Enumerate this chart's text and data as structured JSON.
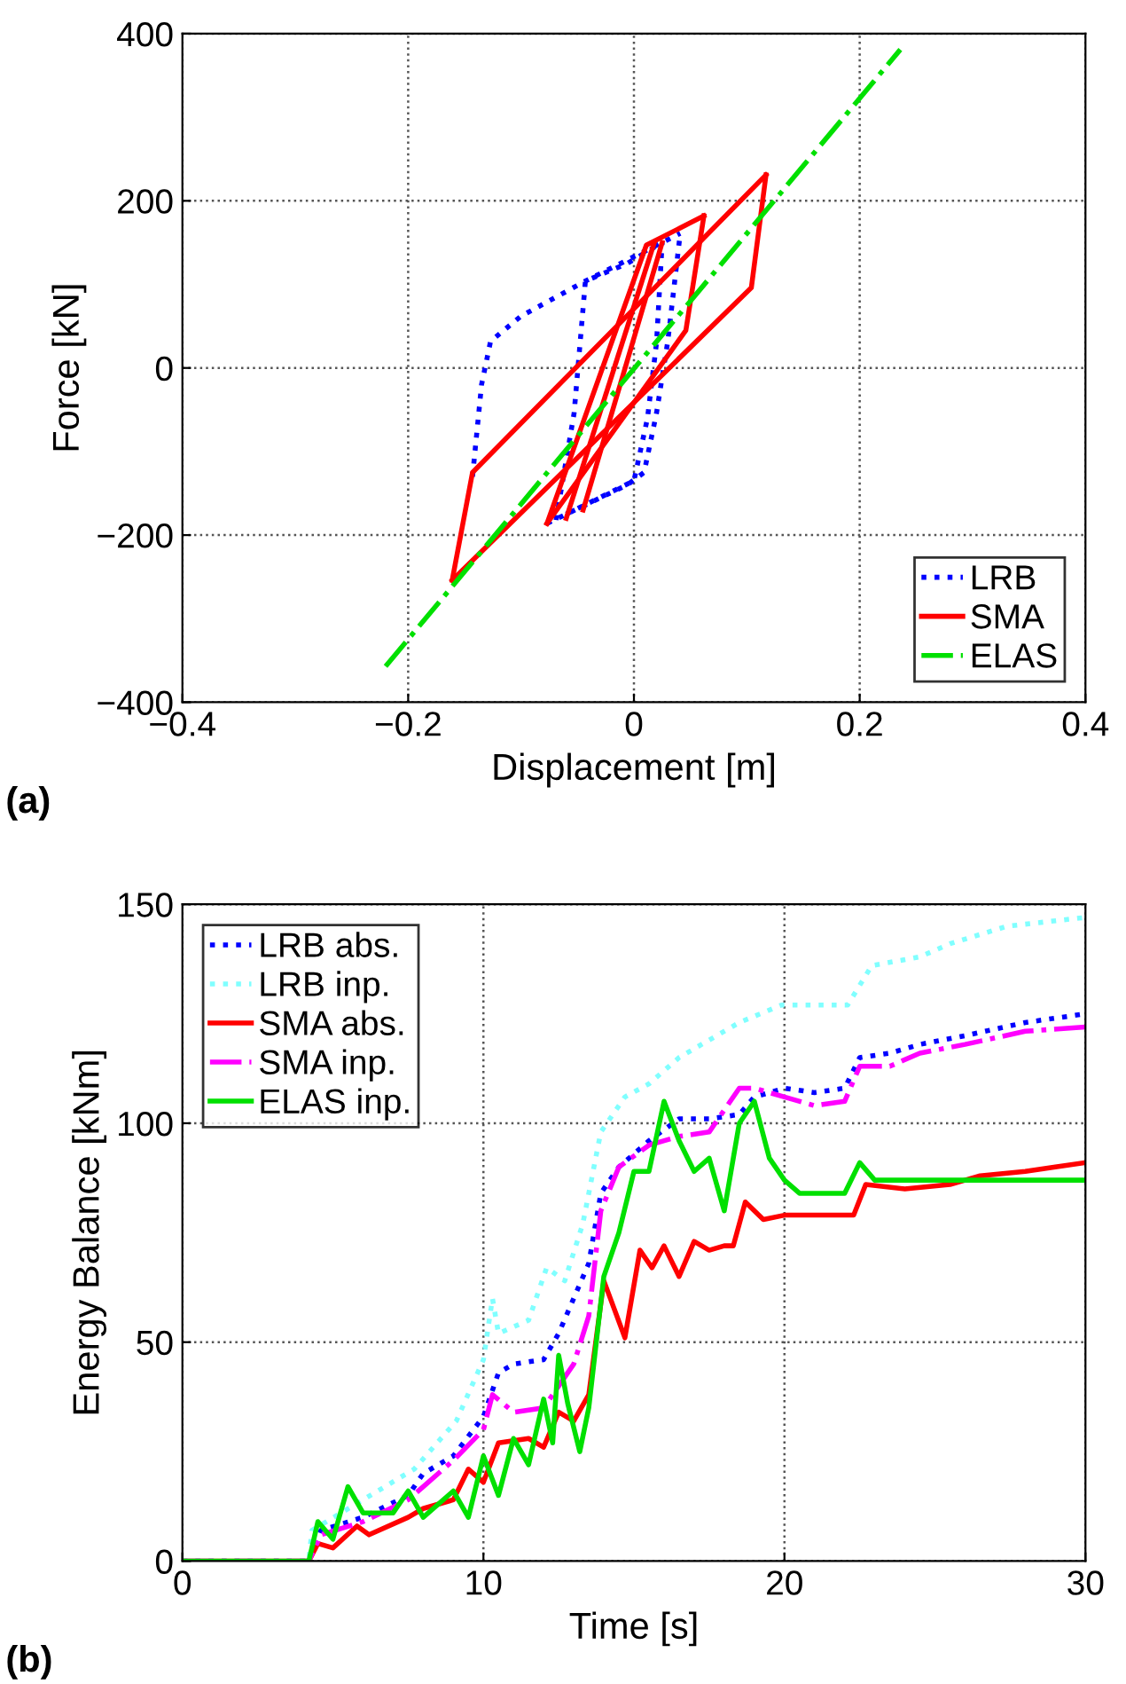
{
  "chart_data": [
    {
      "type": "line",
      "xlabel": "Displacement [m]",
      "ylabel": "Force [kN]",
      "annotations": [
        "(a)"
      ],
      "xlim": [
        -0.4,
        0.4
      ],
      "ylim": [
        -400,
        400
      ],
      "xticks": [
        {
          "value": -0.4,
          "label": "−0.4"
        },
        {
          "value": -0.2,
          "label": "−0.2"
        },
        0,
        0.2,
        0.4
      ],
      "yticks": [
        {
          "value": -400,
          "label": "−400"
        },
        {
          "value": -200,
          "label": "−200"
        },
        0,
        200,
        400
      ],
      "grid": true,
      "legend": "bottom right",
      "series": [
        {
          "name": "LRB",
          "color": "#0000ff",
          "line_style": "dotted",
          "x": [
            -0.143,
            -0.135,
            -0.127,
            -0.1,
            -0.043,
            0.041
          ],
          "values": [
            -130,
            -20,
            32,
            62,
            104,
            161
          ]
        },
        {
          "color": "#0000ff",
          "line_style": "dotted",
          "x": [
            -0.077,
            -0.006,
            0.009,
            0.02,
            0.03,
            0.041
          ],
          "values": [
            -186,
            -140,
            -125,
            -54,
            32,
            161
          ]
        },
        {
          "color": "#0000ff",
          "line_style": "dotted",
          "x": [
            -0.069,
            -0.053,
            -0.043,
            -0.006,
            0.025
          ],
          "values": [
            -182,
            -54,
            104,
            125,
            150
          ]
        },
        {
          "color": "#0000ff",
          "line_style": "dotted",
          "x": [
            -0.06,
            0.0,
            0.012,
            0.02,
            0.025
          ],
          "values": [
            -175,
            -135,
            -60,
            30,
            150
          ]
        },
        {
          "name": "SMA",
          "color": "#ff0000",
          "line_style": "solid",
          "x": [
            -0.161,
            -0.143,
            0.117
          ],
          "values": [
            -254,
            -125,
            231
          ]
        },
        {
          "color": "#ff0000",
          "line_style": "solid",
          "x": [
            -0.161,
            0.104,
            0.117
          ],
          "values": [
            -254,
            96,
            231
          ]
        },
        {
          "color": "#ff0000",
          "line_style": "solid",
          "x": [
            -0.077,
            0.011,
            0.062
          ],
          "values": [
            -186,
            147,
            182
          ]
        },
        {
          "color": "#ff0000",
          "line_style": "solid",
          "x": [
            -0.077,
            0.046,
            0.062
          ],
          "values": [
            -186,
            45,
            182
          ]
        },
        {
          "color": "#ff0000",
          "line_style": "solid",
          "x": [
            -0.06,
            0.018
          ],
          "values": [
            -180,
            150
          ]
        },
        {
          "color": "#ff0000",
          "line_style": "solid",
          "x": [
            -0.045,
            0.025
          ],
          "values": [
            -170,
            150
          ]
        },
        {
          "name": "ELAS",
          "color": "#00e000",
          "line_style": "dashdot",
          "x": [
            -0.22,
            0.236
          ],
          "values": [
            -357,
            381
          ]
        }
      ]
    },
    {
      "type": "line",
      "xlabel": "Time [s]",
      "ylabel": "Energy Balance [kNm]",
      "annotations": [
        "(b)"
      ],
      "xlim": [
        0,
        30
      ],
      "ylim": [
        0,
        150
      ],
      "xticks": [
        0,
        10,
        20,
        30
      ],
      "yticks": [
        0,
        50,
        100,
        150
      ],
      "grid": true,
      "legend": "top left",
      "series": [
        {
          "name": "LRB abs.",
          "color": "#0000ff",
          "line_style": "dotted",
          "x": [
            0,
            4.2,
            4.6,
            6,
            7.5,
            8,
            9,
            10,
            10.5,
            11,
            12,
            12.5,
            13,
            13.5,
            13.9,
            14.5,
            15.5,
            16.5,
            17.5,
            18.5,
            19,
            20,
            21,
            22,
            22.5,
            23.5,
            24.5,
            26,
            28,
            30
          ],
          "values": [
            0,
            0,
            7,
            10,
            15,
            20,
            24,
            33,
            43,
            45,
            46,
            52,
            60,
            68,
            84,
            90,
            96,
            101,
            101,
            102,
            106,
            108,
            107,
            108,
            115,
            116,
            118,
            120,
            123,
            125
          ]
        },
        {
          "name": "LRB inp.",
          "color": "#80ffff",
          "line_style": "dotted",
          "x": [
            0,
            4.2,
            4.3,
            7.7,
            9.1,
            10,
            10.3,
            10.5,
            11.5,
            12.1,
            12.7,
            13.3,
            13.9,
            14.7,
            15.5,
            16.5,
            17.5,
            18.5,
            19.9,
            21.1,
            22.1,
            22.9,
            24.5,
            25.5,
            27.4,
            30
          ],
          "values": [
            0,
            0,
            7,
            21,
            32,
            46,
            60,
            52,
            55,
            67,
            64,
            77,
            98,
            106,
            109,
            115,
            119,
            123,
            127,
            127,
            127,
            136,
            138,
            141,
            145,
            147
          ]
        },
        {
          "name": "SMA abs.",
          "color": "#ff0000",
          "line_style": "solid",
          "x": [
            0,
            4.2,
            4.5,
            5,
            5.8,
            6.2,
            7.5,
            8,
            9,
            9.5,
            10,
            10.5,
            11.5,
            12,
            12.5,
            13,
            13.5,
            14,
            14.7,
            15.2,
            15.6,
            16,
            16.5,
            17,
            17.5,
            18,
            18.3,
            18.7,
            19.3,
            20,
            21,
            22.3,
            22.7,
            24,
            25.5,
            26.5,
            28,
            29,
            30
          ],
          "values": [
            0,
            0,
            4,
            3,
            8,
            6,
            10,
            12,
            14,
            21,
            18,
            27,
            28,
            26,
            34,
            32,
            38,
            64,
            51,
            71,
            67,
            72,
            65,
            73,
            71,
            72,
            72,
            82,
            78,
            79,
            79,
            79,
            86,
            85,
            86,
            88,
            89,
            90,
            91
          ]
        },
        {
          "name": "SMA inp.",
          "color": "#ff00ff",
          "line_style": "dashdot",
          "x": [
            0,
            4.2,
            4.6,
            6,
            7.5,
            8,
            9,
            10,
            10.3,
            11,
            12,
            12.5,
            13,
            13.5,
            13.9,
            14.5,
            15.5,
            16.5,
            17.5,
            18.5,
            19,
            20,
            21,
            22,
            22.5,
            23.5,
            24.5,
            26,
            28,
            30
          ],
          "values": [
            0,
            0,
            6,
            9,
            14,
            17,
            23,
            30,
            38,
            34,
            35,
            40,
            45,
            56,
            80,
            90,
            95,
            97,
            98,
            108,
            108,
            106,
            104,
            105,
            113,
            113,
            116,
            118,
            121,
            122
          ]
        },
        {
          "name": "ELAS inp.",
          "color": "#00e000",
          "line_style": "solid",
          "x": [
            0,
            4.2,
            4.5,
            5,
            5.5,
            6,
            7,
            7.5,
            8,
            9,
            9.5,
            10,
            10.5,
            11,
            11.5,
            12,
            12.3,
            12.5,
            12.8,
            13.2,
            13.5,
            14,
            14.5,
            15,
            15.5,
            16,
            16.5,
            17,
            17.5,
            18,
            18.5,
            19,
            19.5,
            20,
            20.5,
            21,
            22,
            22.5,
            23,
            25,
            27,
            30
          ],
          "values": [
            0,
            0,
            9,
            5,
            17,
            11,
            11,
            16,
            10,
            16,
            10,
            24,
            15,
            28,
            22,
            37,
            27,
            47,
            36,
            25,
            35,
            65,
            75,
            89,
            89,
            105,
            96,
            89,
            92,
            80,
            100,
            105,
            92,
            87,
            84,
            84,
            84,
            91,
            87,
            87,
            87,
            87
          ]
        }
      ]
    }
  ]
}
